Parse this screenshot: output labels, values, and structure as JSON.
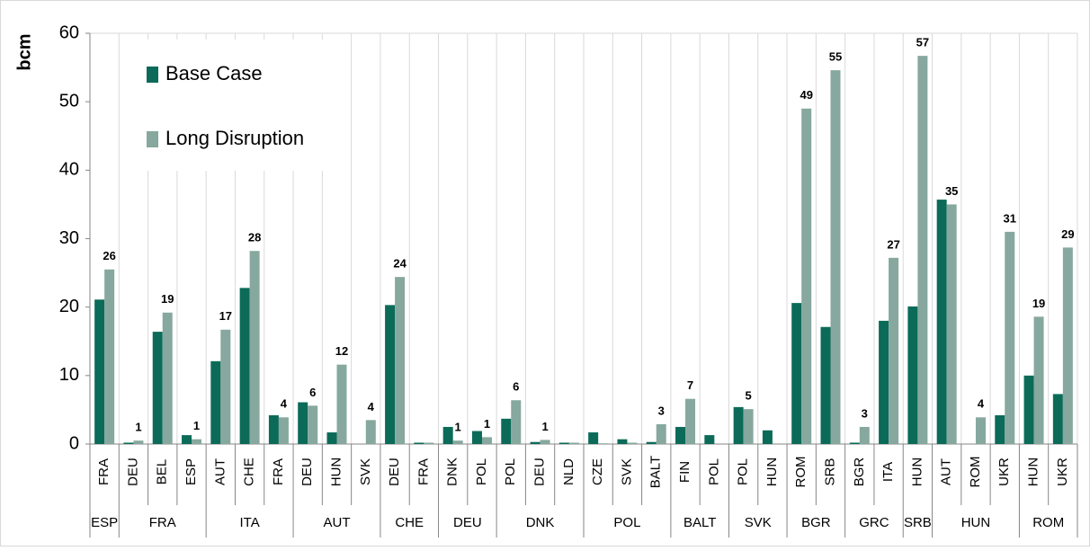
{
  "chart_data": {
    "type": "bar",
    "y_label": "bcm",
    "groups": [
      {
        "name": "ESP",
        "categories": [
          "FRA"
        ]
      },
      {
        "name": "FRA",
        "categories": [
          "DEU",
          "BEL",
          "ESP"
        ]
      },
      {
        "name": "ITA",
        "categories": [
          "AUT",
          "CHE",
          "FRA"
        ]
      },
      {
        "name": "AUT",
        "categories": [
          "DEU",
          "HUN",
          "SVK"
        ]
      },
      {
        "name": "CHE",
        "categories": [
          "DEU",
          "FRA"
        ]
      },
      {
        "name": "DEU",
        "categories": [
          "DNK",
          "POL"
        ]
      },
      {
        "name": "DNK",
        "categories": [
          "POL",
          "DEU",
          "NLD"
        ]
      },
      {
        "name": "POL",
        "categories": [
          "CZE",
          "SVK",
          "BALT"
        ]
      },
      {
        "name": "BALT",
        "categories": [
          "FIN",
          "POL"
        ]
      },
      {
        "name": "SVK",
        "categories": [
          "POL",
          "HUN"
        ]
      },
      {
        "name": "BGR",
        "categories": [
          "ROM",
          "SRB"
        ]
      },
      {
        "name": "GRC",
        "categories": [
          "BGR",
          "ITA"
        ]
      },
      {
        "name": "SRB",
        "categories": [
          "HUN"
        ]
      },
      {
        "name": "HUN",
        "categories": [
          "AUT",
          "ROM",
          "UKR"
        ]
      },
      {
        "name": "ROM",
        "categories": [
          "HUN",
          "UKR"
        ]
      }
    ],
    "series": [
      {
        "name": "Base Case",
        "color": "#0b6b58",
        "values": [
          21.1,
          0.2,
          16.4,
          1.3,
          12.1,
          22.8,
          4.2,
          6.1,
          1.7,
          0,
          20.3,
          0.2,
          2.5,
          1.9,
          3.7,
          0.3,
          0.2,
          1.7,
          0.7,
          0.3,
          2.5,
          1.3,
          5.4,
          2.0,
          20.6,
          17.1,
          0.2,
          18.0,
          20.1,
          35.7,
          0,
          4.2,
          10.0,
          7.3
        ]
      },
      {
        "name": "Long Disruption",
        "color": "#86a89e",
        "values": [
          25.5,
          0.5,
          19.2,
          0.7,
          16.7,
          28.2,
          3.9,
          5.6,
          11.6,
          3.5,
          24.4,
          0.2,
          0.5,
          1.0,
          6.4,
          0.6,
          0.2,
          0.1,
          0.2,
          2.9,
          6.6,
          0,
          5.1,
          0,
          49.0,
          54.6,
          2.5,
          27.2,
          56.7,
          35.0,
          3.9,
          31.0,
          18.6,
          28.7
        ],
        "value_labels": [
          "26",
          "1",
          "19",
          "1",
          "17",
          "28",
          "4",
          "6",
          "12",
          "4",
          "24",
          null,
          "1",
          "1",
          "6",
          "1",
          null,
          null,
          null,
          "3",
          "7",
          null,
          "5",
          null,
          "49",
          "55",
          "3",
          "27",
          "57",
          "35",
          "4",
          "31",
          "19",
          "29"
        ]
      }
    ],
    "ylim": [
      0,
      60
    ],
    "yticks": [
      0,
      10,
      20,
      30,
      40,
      50,
      60
    ],
    "legend": "top-left"
  }
}
